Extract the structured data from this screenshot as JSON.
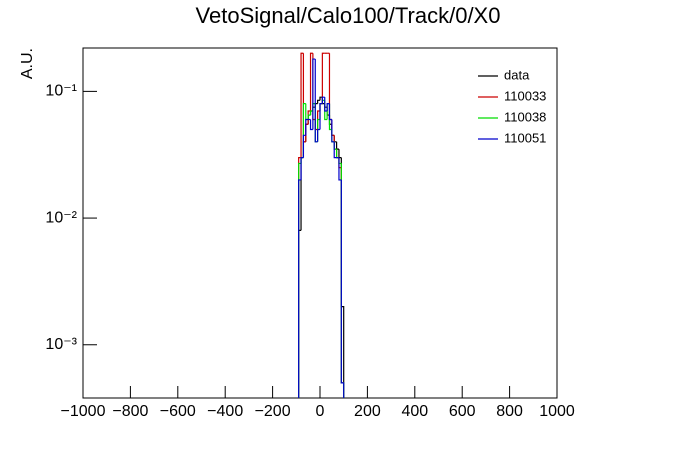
{
  "chart_data": {
    "type": "histogram",
    "title": "VetoSignal/Calo100/Track/0/X0",
    "y_label": "A.U.",
    "bins": [
      -90,
      -80,
      -70,
      -60,
      -50,
      -40,
      -30,
      -20,
      -10,
      0,
      10,
      20,
      30,
      40,
      50,
      60,
      70,
      80,
      90,
      100
    ],
    "series": [
      {
        "name": "data",
        "color": "#000000",
        "values": [
          0.008,
          0.03,
          0.04,
          0.055,
          0.065,
          0.07,
          0.075,
          0.08,
          0.085,
          0.09,
          0.08,
          0.075,
          0.065,
          0.055,
          0.045,
          0.04,
          0.035,
          0.03,
          0.002
        ]
      },
      {
        "name": "110033",
        "color": "#cc0000",
        "values": [
          0.03,
          0.2,
          0.04,
          0.055,
          0.07,
          0.2,
          0.06,
          0.05,
          0.07,
          0.08,
          0.2,
          0.2,
          0.2,
          0.06,
          0.045,
          0.035,
          0.03,
          0.025,
          0.0005
        ]
      },
      {
        "name": "110038",
        "color": "#00dd00",
        "values": [
          0.027,
          0.03,
          0.08,
          0.06,
          0.065,
          0.07,
          0.08,
          0.04,
          0.06,
          0.08,
          0.085,
          0.06,
          0.08,
          0.05,
          0.04,
          0.035,
          0.03,
          0.027,
          0.0005
        ]
      },
      {
        "name": "110051",
        "color": "#0000cc",
        "values": [
          0.02,
          0.03,
          0.045,
          0.06,
          0.06,
          0.05,
          0.18,
          0.04,
          0.05,
          0.08,
          0.09,
          0.07,
          0.08,
          0.06,
          0.04,
          0.03,
          0.03,
          0.02,
          0.0005
        ]
      }
    ],
    "xlim": [
      -1000,
      1000
    ],
    "xticks": [
      {
        "value": -1000,
        "label": "−1000"
      },
      {
        "value": -800,
        "label": "−800"
      },
      {
        "value": -600,
        "label": "−600"
      },
      {
        "value": -400,
        "label": "−400"
      },
      {
        "value": -200,
        "label": "−200"
      },
      0,
      200,
      400,
      600,
      800,
      1000
    ],
    "ylim": [
      0.00038,
      0.22
    ],
    "yticks": [
      {
        "value": 0.001,
        "label": "10⁻³"
      },
      {
        "value": 0.01,
        "label": "10⁻²"
      },
      {
        "value": 0.1,
        "label": "10⁻¹"
      }
    ],
    "log_y": true,
    "legend": "upper right"
  }
}
